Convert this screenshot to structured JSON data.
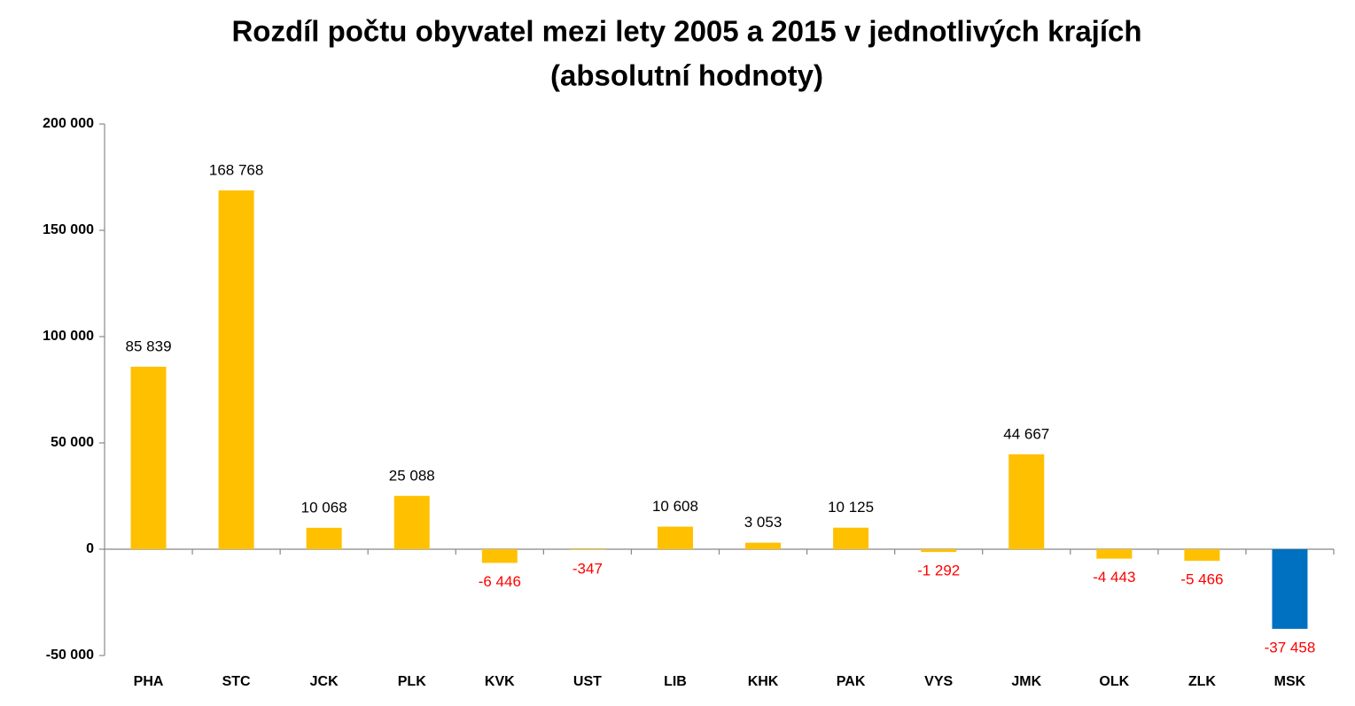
{
  "chart_data": {
    "type": "bar",
    "title": [
      "Rozdíl počtu obyvatel mezi lety 2005 a 2015 v jednotlivých krajích",
      "(absolutní hodnoty)"
    ],
    "categories": [
      "PHA",
      "STC",
      "JCK",
      "PLK",
      "KVK",
      "UST",
      "LIB",
      "KHK",
      "PAK",
      "VYS",
      "JMK",
      "OLK",
      "ZLK",
      "MSK"
    ],
    "values": [
      85839,
      168768,
      10068,
      25088,
      -6446,
      -347,
      10608,
      3053,
      10125,
      -1292,
      44667,
      -4443,
      -5466,
      -37458
    ],
    "value_labels": [
      "85 839",
      "168 768",
      "10 068",
      "25 088",
      "-6 446",
      "-347",
      "10 608",
      "3 053",
      "10 125",
      "-1 292",
      "44 667",
      "-4 443",
      "-5 466",
      "-37 458"
    ],
    "colors": [
      "#ffc000",
      "#ffc000",
      "#ffc000",
      "#ffc000",
      "#ffc000",
      "#ffc000",
      "#ffc000",
      "#ffc000",
      "#ffc000",
      "#ffc000",
      "#ffc000",
      "#ffc000",
      "#ffc000",
      "#0070c0"
    ],
    "label_color": "#000000",
    "negative_label_color": "#ff0000",
    "ylim": [
      -50000,
      200000
    ],
    "yticks": [
      {
        "value": -50000,
        "label": "-50 000"
      },
      0,
      {
        "value": 50000,
        "label": "50 000"
      },
      {
        "value": 100000,
        "label": "100 000"
      },
      {
        "value": 150000,
        "label": "150 000"
      },
      {
        "value": 200000,
        "label": "200 000"
      }
    ],
    "grid": false
  }
}
